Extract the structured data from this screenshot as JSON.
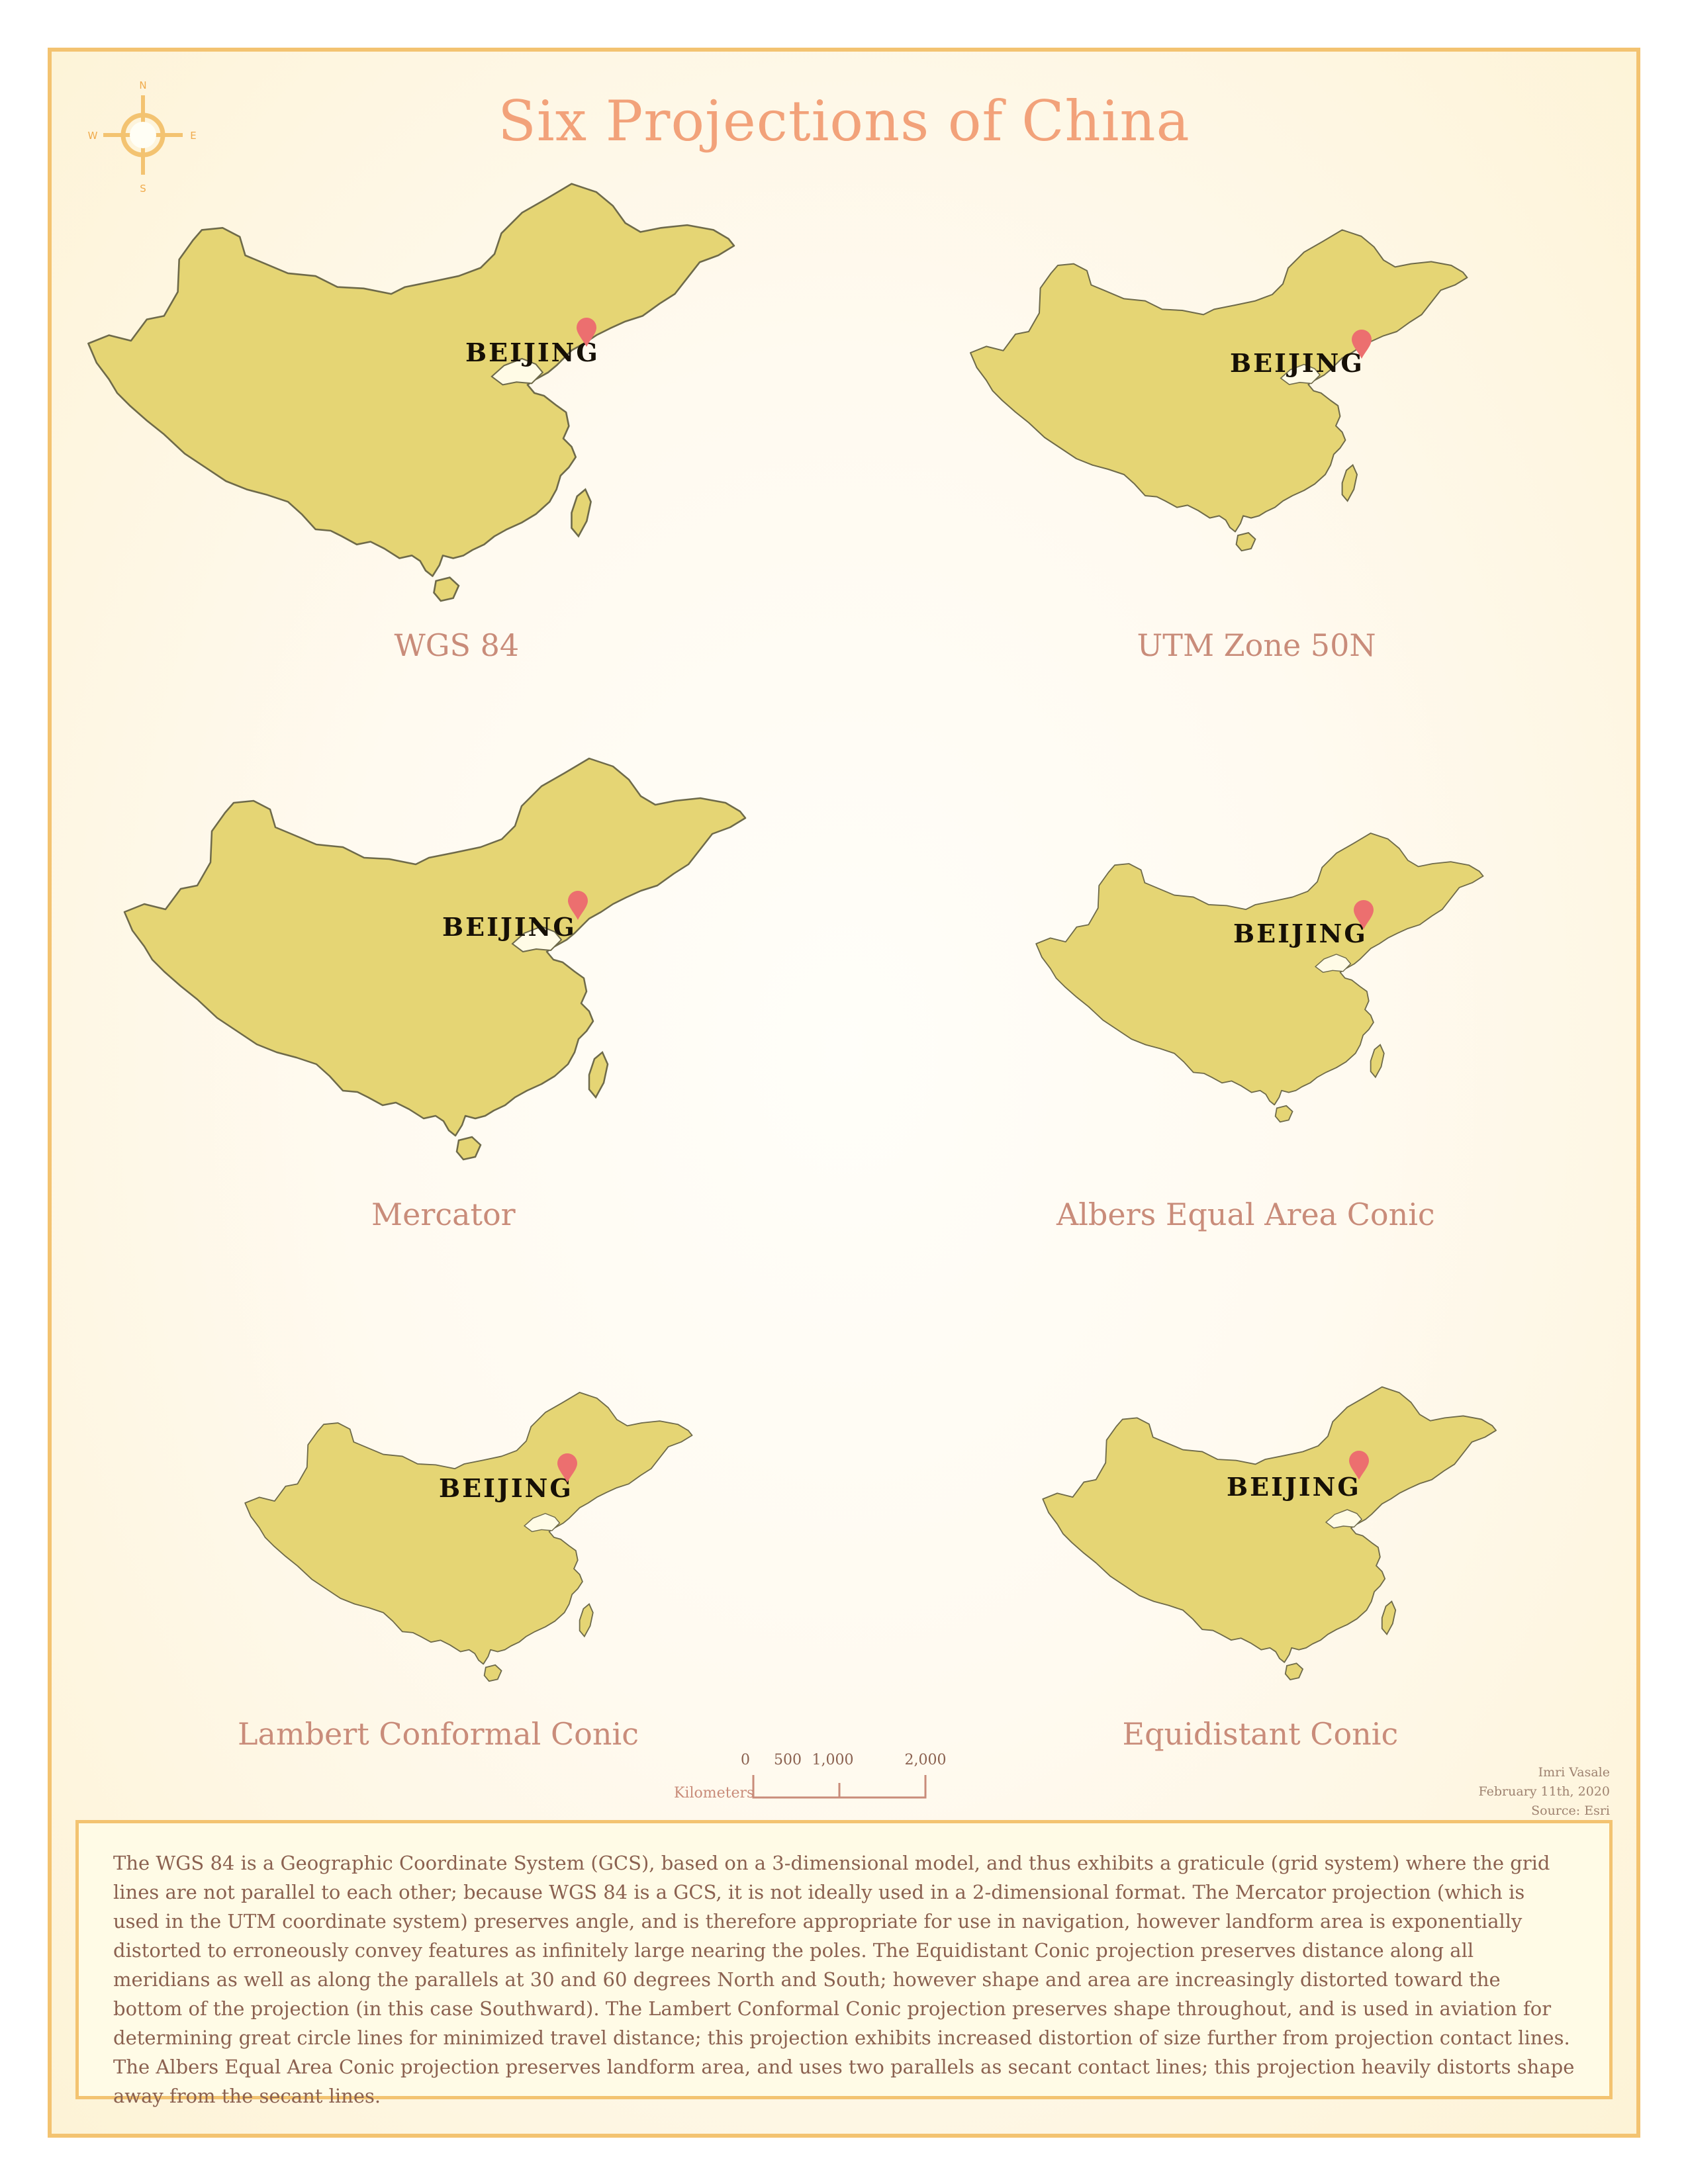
{
  "title": "Six Projections of China",
  "compass": {
    "n": "N",
    "s": "S",
    "e": "E",
    "w": "W",
    "icon": "compass-rose-icon"
  },
  "city_label": "BEIJING",
  "projections": [
    {
      "label": "WGS 84"
    },
    {
      "label": "UTM Zone 50N"
    },
    {
      "label": "Mercator"
    },
    {
      "label": "Albers Equal Area Conic"
    },
    {
      "label": "Lambert Conformal Conic"
    },
    {
      "label": "Equidistant Conic"
    }
  ],
  "scale": {
    "unit": "Kilometers",
    "ticks": [
      "0",
      "500",
      "1,000",
      "2,000"
    ]
  },
  "credits": {
    "author": "Imri Vasale",
    "date": "February 11th, 2020",
    "source": "Source: Esri"
  },
  "description": "The WGS 84 is a Geographic Coordinate System (GCS), based on a 3-dimensional model, and thus exhibits a graticule (grid system) where the grid lines are not parallel to each other; because WGS 84 is a GCS, it is not ideally used in a 2-dimensional format. The Mercator projection (which is used in the UTM coordinate system) preserves angle, and is therefore appropriate for use in navigation, however landform area is exponentially distorted to erroneously convey features as infinitely large nearing the poles. The Equidistant Conic projection preserves distance along all meridians as well as along the parallels at 30 and 60 degrees North and South; however shape and area are increasingly distorted toward the bottom of the projection (in this case Southward). The Lambert Conformal Conic projection preserves shape throughout, and is used in aviation for determining great circle lines for minimized travel distance; this projection exhibits increased distortion of size further from projection contact lines. The Albers Equal Area Conic projection preserves landform area, and uses two parallels as secant contact lines; this projection heavily distorts shape away from the secant lines.",
  "colors": {
    "land": "#e5d574",
    "land_outline": "#6e6a4a",
    "pin": "#ec6f6f",
    "title": "#f2a27a",
    "label": "#c98c7a",
    "border": "#f3c371"
  }
}
